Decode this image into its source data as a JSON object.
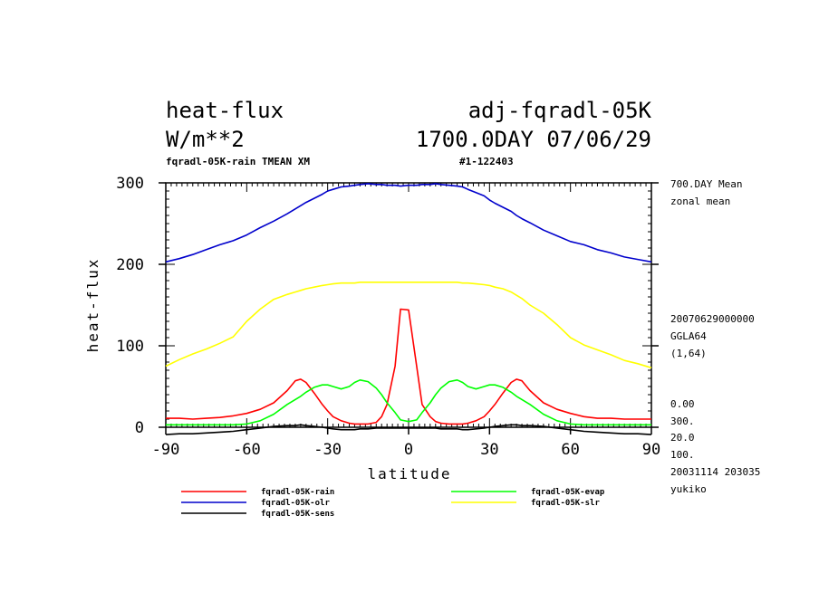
{
  "header": {
    "left_title": "heat-flux",
    "right_title": "adj-fqradl-05K",
    "units": "W/m**2",
    "time_label": "1700.0DAY 07/06/29",
    "subtitle_left": "fqradl-05K-rain TMEAN XM",
    "subtitle_right": "#1-122403"
  },
  "side_notes": {
    "mean": "700.DAY Mean",
    "zonal": "zonal mean",
    "date_code": "20070629000000",
    "grid": "GGLA64",
    "index": "(1,64)",
    "v1": "0.00",
    "v2": "300.",
    "v3": "20.0",
    "v4": "100.",
    "timestamp": "20031114 203035",
    "user": "yukiko"
  },
  "chart_data": {
    "type": "line",
    "title": "heat-flux",
    "xlabel": "latitude",
    "ylabel": "heat-flux",
    "xlim": [
      -90,
      90
    ],
    "ylim": [
      0,
      300
    ],
    "xticks": [
      -90,
      -60,
      -30,
      0,
      30,
      60,
      90
    ],
    "yticks": [
      0,
      100,
      200,
      300
    ],
    "x": [
      -90,
      -85,
      -80,
      -75,
      -70,
      -65,
      -60,
      -55,
      -50,
      -45,
      -42,
      -40,
      -38,
      -35,
      -32,
      -30,
      -28,
      -25,
      -22,
      -20,
      -18,
      -15,
      -12,
      -10,
      -8,
      -5,
      -3,
      0,
      3,
      5,
      8,
      10,
      12,
      15,
      18,
      20,
      22,
      25,
      28,
      30,
      32,
      35,
      38,
      40,
      42,
      45,
      50,
      55,
      60,
      65,
      70,
      75,
      80,
      85,
      90
    ],
    "series": [
      {
        "name": "fqradl-05K-rain",
        "color": "#ff0000",
        "values": [
          11,
          11,
          10,
          11,
          12,
          14,
          17,
          22,
          30,
          45,
          57,
          59,
          55,
          42,
          28,
          20,
          13,
          8,
          5,
          4,
          4,
          4,
          6,
          13,
          28,
          75,
          145,
          144,
          75,
          28,
          13,
          7,
          5,
          4,
          4,
          4,
          5,
          8,
          13,
          20,
          28,
          42,
          55,
          59,
          57,
          45,
          30,
          22,
          17,
          13,
          11,
          11,
          10,
          10,
          10
        ]
      },
      {
        "name": "fqradl-05K-evap",
        "color": "#00ff00",
        "values": [
          3,
          3,
          3,
          3,
          3,
          3,
          4,
          8,
          16,
          28,
          34,
          38,
          43,
          49,
          52,
          52,
          50,
          47,
          50,
          55,
          58,
          56,
          48,
          40,
          30,
          18,
          9,
          7,
          9,
          18,
          30,
          40,
          48,
          56,
          58,
          55,
          50,
          47,
          50,
          52,
          52,
          49,
          43,
          38,
          34,
          28,
          16,
          8,
          4,
          3,
          3,
          3,
          3,
          3,
          3
        ]
      },
      {
        "name": "fqradl-05K-olr",
        "color": "#0000cc",
        "values": [
          203,
          207,
          212,
          218,
          224,
          229,
          236,
          245,
          253,
          262,
          268,
          272,
          276,
          281,
          286,
          290,
          292,
          295,
          296,
          297,
          298,
          299,
          298,
          298,
          297,
          297,
          296,
          297,
          297,
          298,
          298,
          299,
          298,
          297,
          296,
          295,
          292,
          288,
          284,
          279,
          275,
          270,
          265,
          260,
          256,
          251,
          242,
          235,
          228,
          224,
          218,
          214,
          209,
          206,
          203
        ]
      },
      {
        "name": "fqradl-05K-slr",
        "color": "#ffff00",
        "values": [
          75,
          83,
          90,
          96,
          103,
          111,
          130,
          145,
          157,
          163,
          166,
          168,
          170,
          172,
          174,
          175,
          176,
          177,
          177,
          177,
          178,
          178,
          178,
          178,
          178,
          178,
          178,
          178,
          178,
          178,
          178,
          178,
          178,
          178,
          178,
          177,
          177,
          176,
          175,
          174,
          172,
          170,
          166,
          162,
          158,
          150,
          140,
          126,
          110,
          101,
          95,
          89,
          82,
          78,
          73
        ]
      },
      {
        "name": "fqradl-05K-sens",
        "color": "#000000",
        "values": [
          -9,
          -8,
          -8,
          -7,
          -6,
          -5,
          -3,
          -1,
          1,
          2,
          2,
          3,
          2,
          1,
          0,
          -1,
          -2,
          -3,
          -3,
          -3,
          -2,
          -2,
          -1,
          -1,
          -1,
          -1,
          -1,
          -1,
          -1,
          -1,
          -1,
          -1,
          -2,
          -2,
          -2,
          -3,
          -3,
          -2,
          -1,
          0,
          1,
          2,
          3,
          3,
          2,
          2,
          1,
          -1,
          -3,
          -5,
          -6,
          -7,
          -8,
          -8,
          -9
        ]
      }
    ],
    "legend": [
      {
        "label": "fqradl-05K-rain",
        "color": "#ff0000",
        "col": 0,
        "row": 0
      },
      {
        "label": "fqradl-05K-evap",
        "color": "#00ff00",
        "col": 1,
        "row": 0
      },
      {
        "label": "fqradl-05K-olr",
        "color": "#0000cc",
        "col": 0,
        "row": 1
      },
      {
        "label": "fqradl-05K-slr",
        "color": "#ffff00",
        "col": 1,
        "row": 1
      },
      {
        "label": "fqradl-05K-sens",
        "color": "#000000",
        "col": 0,
        "row": 2
      }
    ]
  }
}
